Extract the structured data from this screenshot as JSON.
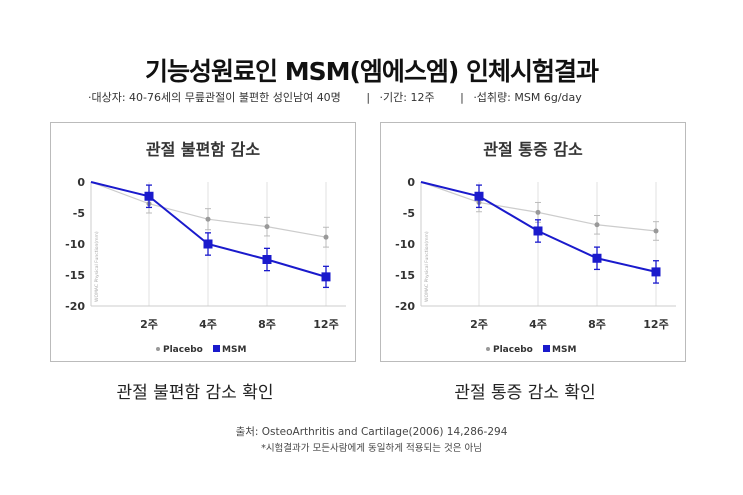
{
  "header": {
    "title": "기능성원료인 MSM(엠에스엠) 인체시험결과",
    "subject": "·대상자: 40-76세의 무릎관절이 불편한 성인남여 40명",
    "sep": "|",
    "period": "·기간: 12주",
    "dose": "·섭취량: MSM 6g/day"
  },
  "chart_data": [
    {
      "type": "line",
      "title": "관절 불편함 감소",
      "ylabel": "WOMAC Physical Function(mm)",
      "x": [
        "0",
        "2주",
        "4주",
        "8주",
        "12주"
      ],
      "ylim": [
        -20,
        0
      ],
      "yticks": [
        "0",
        "-5",
        "-10",
        "-15",
        "-20"
      ],
      "legend": [
        "Placebo",
        "MSM"
      ],
      "legend_position": "bottom",
      "series": [
        {
          "name": "Placebo",
          "color": "#999999",
          "values": [
            0,
            -3.5,
            -6,
            -7.2,
            -8.9
          ],
          "error": [
            0,
            1.5,
            1.7,
            1.5,
            1.6
          ]
        },
        {
          "name": "MSM",
          "color": "#1a1acc",
          "values": [
            0,
            -2.3,
            -10,
            -12.5,
            -15.3
          ],
          "error": [
            0,
            1.8,
            1.8,
            1.8,
            1.7
          ]
        }
      ]
    },
    {
      "type": "line",
      "title": "관절 통증 감소",
      "ylabel": "WOMAC Physical Function(mm)",
      "x": [
        "0",
        "2주",
        "4주",
        "8주",
        "12주"
      ],
      "ylim": [
        -20,
        0
      ],
      "yticks": [
        "0",
        "-5",
        "-10",
        "-15",
        "-20"
      ],
      "legend": [
        "Placebo",
        "MSM"
      ],
      "legend_position": "bottom",
      "series": [
        {
          "name": "Placebo",
          "color": "#999999",
          "values": [
            0,
            -3.3,
            -4.9,
            -6.9,
            -7.9
          ],
          "error": [
            0,
            1.5,
            1.6,
            1.5,
            1.5
          ]
        },
        {
          "name": "MSM",
          "color": "#1a1acc",
          "values": [
            0,
            -2.3,
            -7.9,
            -12.3,
            -14.5
          ],
          "error": [
            0,
            1.8,
            1.8,
            1.8,
            1.8
          ]
        }
      ]
    }
  ],
  "confirm": [
    "관절 불편함 감소 확인",
    "관절 통증 감소 확인"
  ],
  "footer": {
    "source": "출처: OsteoArthritis and Cartilage(2006) 14,286-294",
    "note": "*시험결과가 모든사람에게 동일하게 적용되는 것은 아님"
  }
}
